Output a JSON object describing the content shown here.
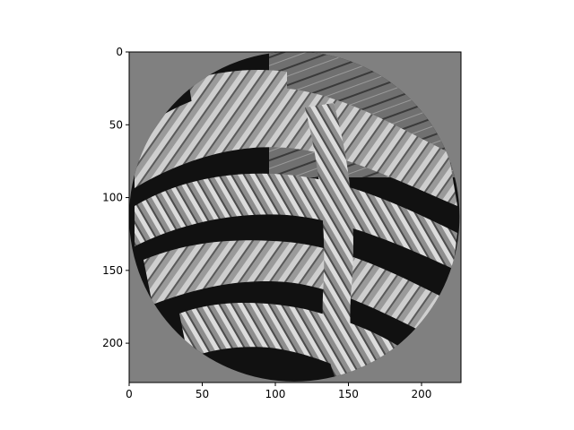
{
  "chart_data": {
    "type": "heatmap",
    "title": "",
    "xlabel": "",
    "ylabel": "",
    "xlim": [
      0,
      227
    ],
    "ylim": [
      227,
      0
    ],
    "x_ticks": [
      0,
      50,
      100,
      150,
      200
    ],
    "y_ticks": [
      0,
      50,
      100,
      150,
      200
    ],
    "x_tick_labels": [
      "0",
      "50",
      "100",
      "150",
      "200"
    ],
    "y_tick_labels": [
      "0",
      "50",
      "100",
      "150",
      "200"
    ],
    "image_description": "grayscale photo of coiled ropes masked to a circle",
    "mask": {
      "shape": "circle",
      "center": [
        113,
        113
      ],
      "radius": 113
    },
    "colors": {
      "background_gray": "#808080",
      "rope_light": "#d8d8d8",
      "rope_mid": "#a6a6a6",
      "rope_dark": "#4a4a4a",
      "shadow": "#111111",
      "wood": "#6e6e6e"
    }
  }
}
